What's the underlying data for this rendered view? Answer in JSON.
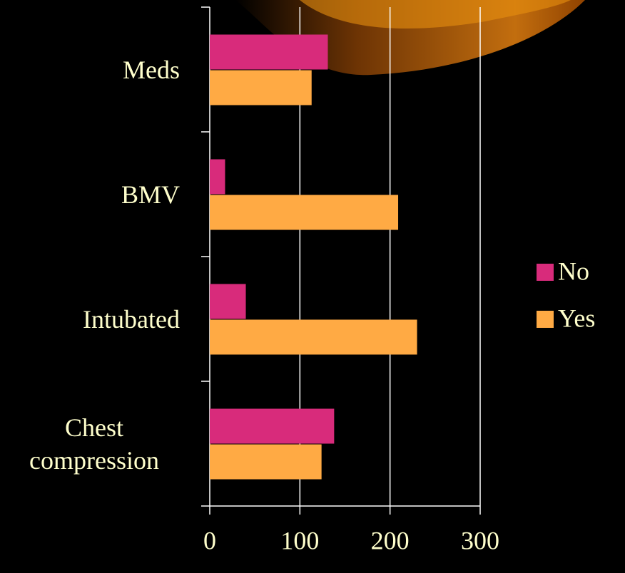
{
  "chart_data": {
    "type": "bar",
    "orientation": "horizontal",
    "categories": [
      "Meds",
      "BMV",
      "Intubated",
      "Chest compression"
    ],
    "series": [
      {
        "name": "No",
        "color": "#d82b7b",
        "values": [
          131,
          17,
          40,
          138
        ]
      },
      {
        "name": "Yes",
        "color": "#ffaa44",
        "values": [
          113,
          209,
          230,
          124
        ]
      }
    ],
    "xlim": [
      0,
      300
    ],
    "xticks": [
      0,
      100,
      200,
      300
    ],
    "grid": true,
    "legend": "right"
  }
}
